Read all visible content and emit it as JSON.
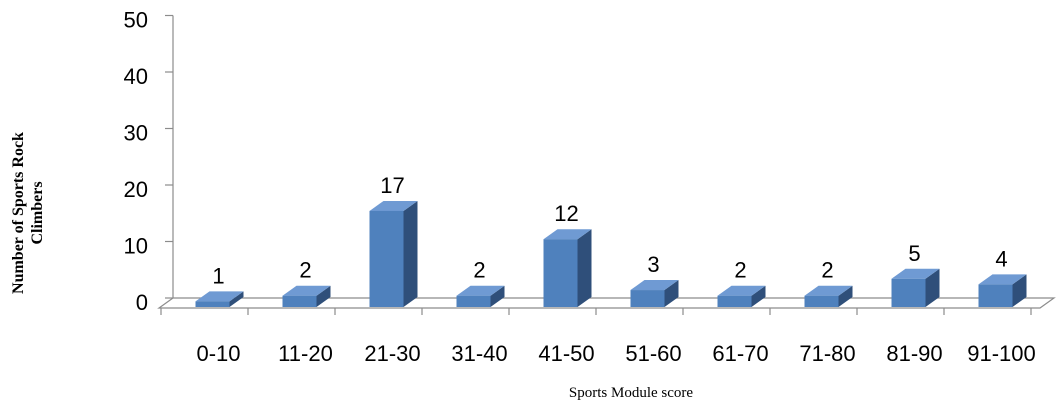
{
  "chart_data": {
    "type": "bar",
    "categories": [
      "0-10",
      "11-20",
      "21-30",
      "31-40",
      "41-50",
      "51-60",
      "61-70",
      "71-80",
      "81-90",
      "91-100"
    ],
    "values": [
      1,
      2,
      17,
      2,
      12,
      3,
      2,
      2,
      5,
      4
    ],
    "data_labels": [
      "1",
      "2",
      "17",
      "2",
      "12",
      "3",
      "2",
      "2",
      "5",
      "4"
    ],
    "ylim": [
      0,
      50
    ],
    "yticks": [
      0,
      10,
      20,
      30,
      40,
      50
    ],
    "ytick_labels": [
      "0",
      "10",
      "20",
      "30",
      "40",
      "50"
    ],
    "ylabel_line1": "Number of Sports Rock",
    "ylabel_line2": "Climbers",
    "xlabel": "Sports Module score",
    "bar_color": "#4f81bd",
    "bar_side_color": "#2f4f7a",
    "bar_top_color": "#6f9ad3",
    "grid": false,
    "three_d": true
  }
}
